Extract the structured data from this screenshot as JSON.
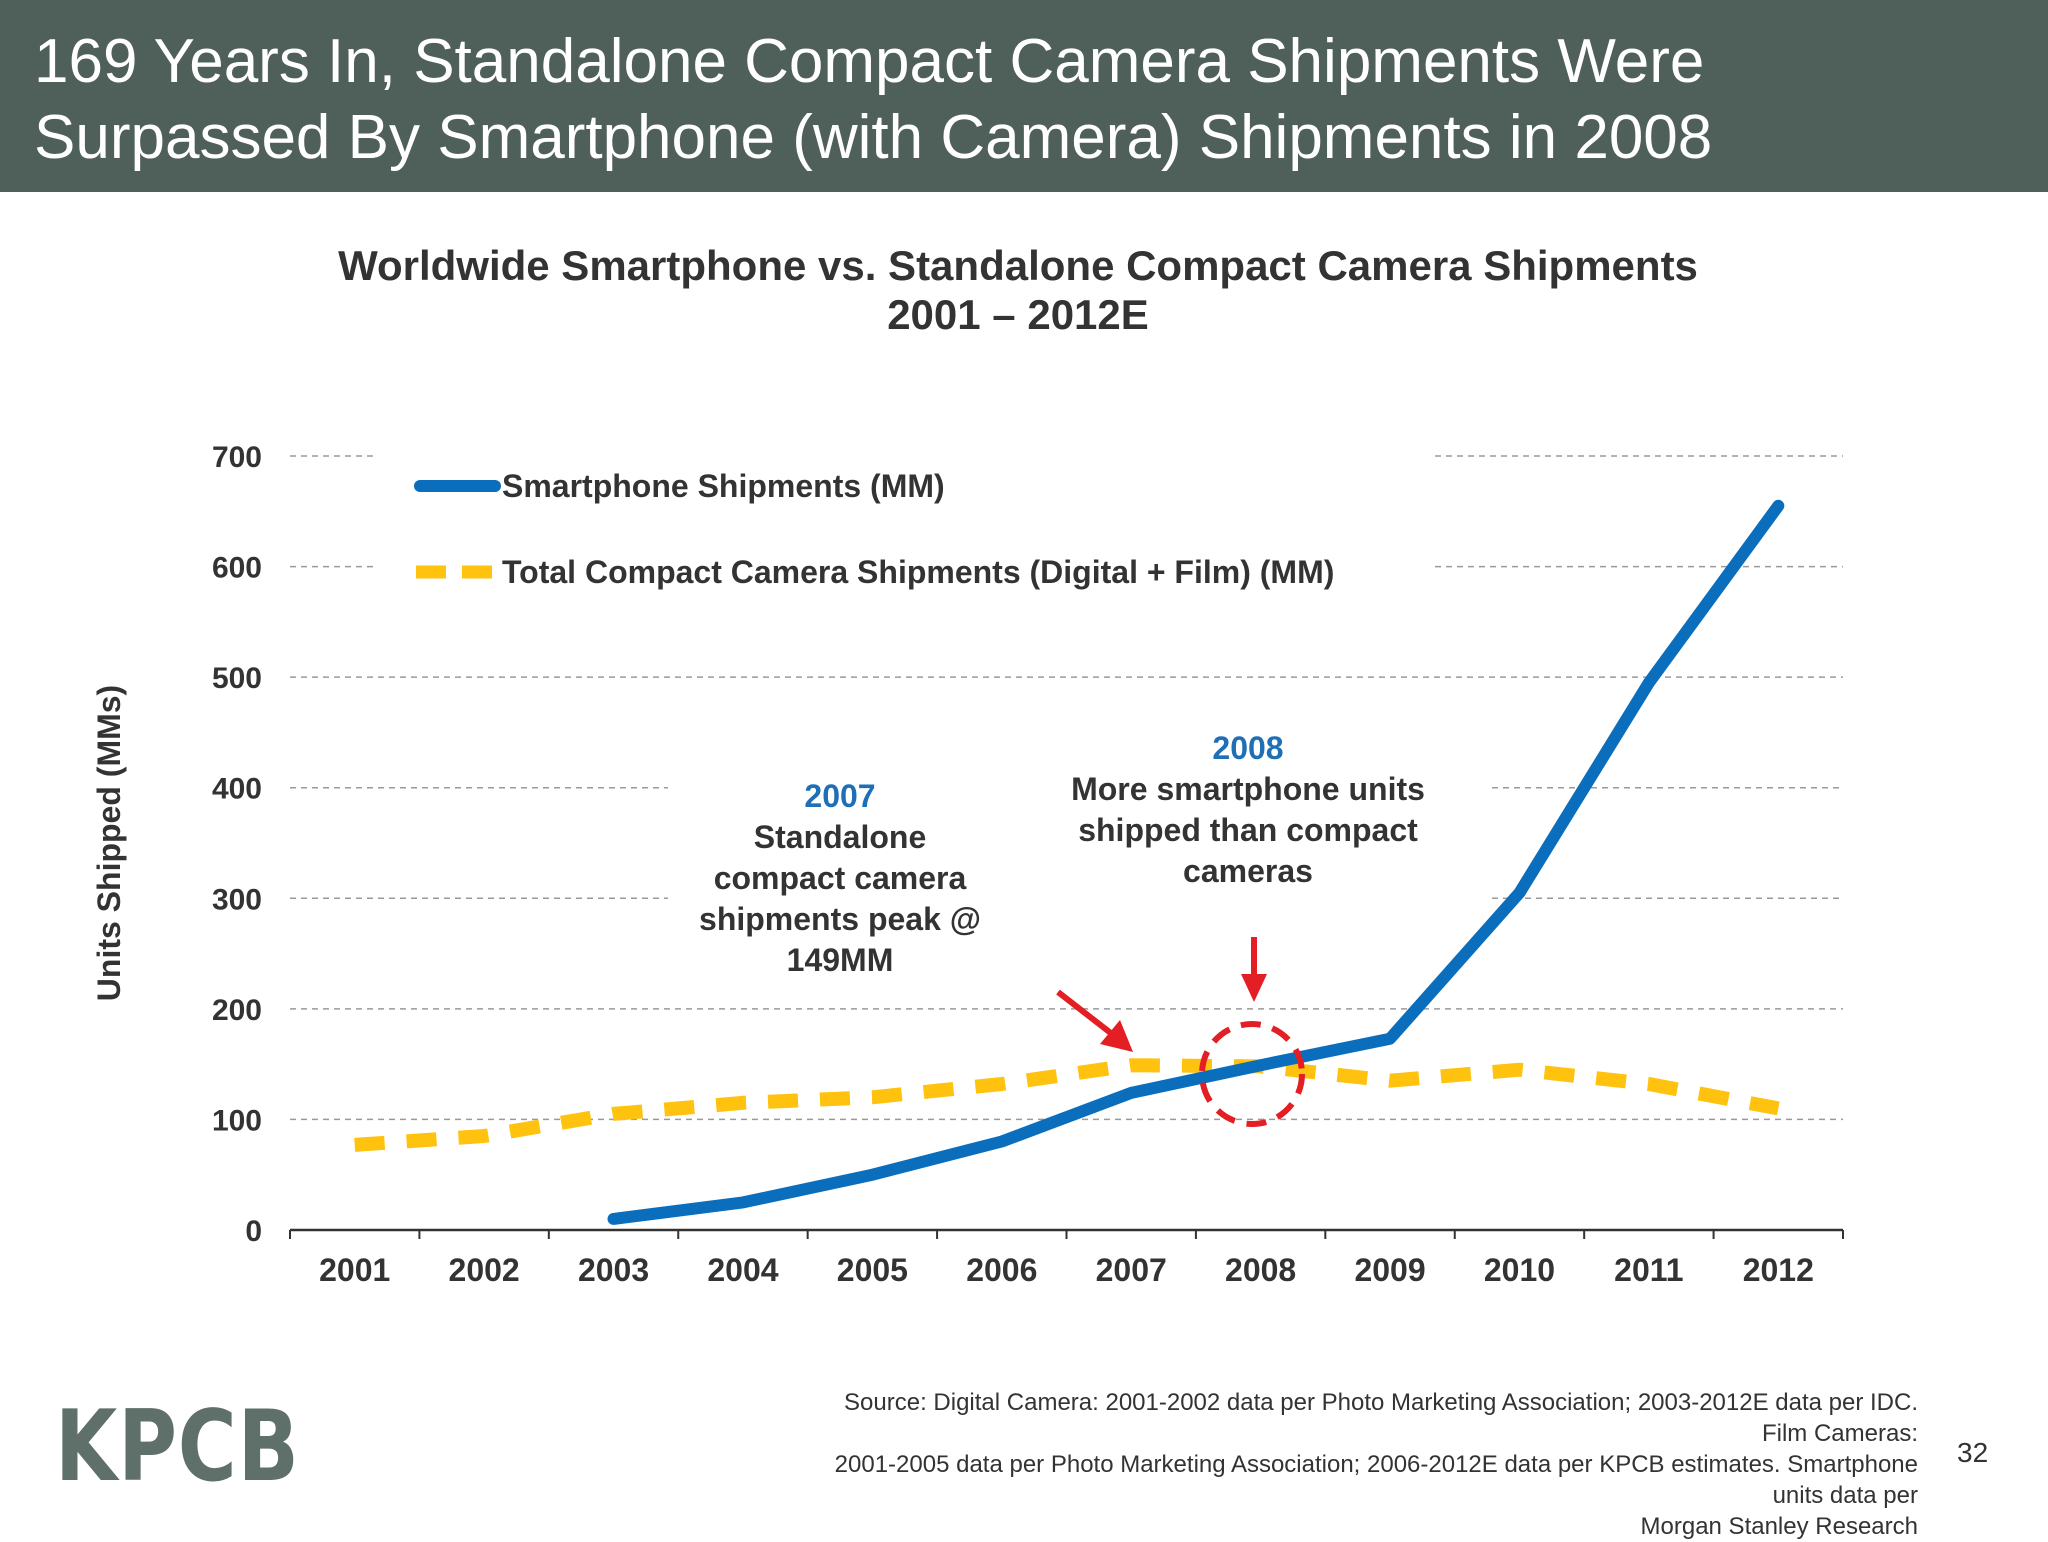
{
  "header": {
    "line1": "169 Years In, Standalone Compact Camera Shipments Were",
    "line2": "Surpassed By Smartphone (with Camera) Shipments in 2008"
  },
  "chart_data": {
    "type": "line",
    "title": "Worldwide Smartphone vs. Standalone Compact Camera Shipments",
    "subtitle": "2001 – 2012E",
    "ylabel": "Units Shipped (MMs)",
    "xlabel": "",
    "ylim": [
      0,
      700
    ],
    "yticks": [
      0,
      100,
      200,
      300,
      400,
      500,
      600,
      700
    ],
    "grid": true,
    "legend_position": "top-left",
    "categories": [
      "2001",
      "2002",
      "2003",
      "2004",
      "2005",
      "2006",
      "2007",
      "2008",
      "2009",
      "2010",
      "2011",
      "2012"
    ],
    "series": [
      {
        "name": "Smartphone Shipments (MM)",
        "style": "solid",
        "color": "#0a6ebd",
        "values": [
          null,
          null,
          10,
          25,
          50,
          80,
          124,
          149,
          173,
          305,
          495,
          655
        ]
      },
      {
        "name": "Total Compact Camera Shipments (Digital + Film) (MM)",
        "style": "dashed",
        "color": "#ffc20e",
        "values": [
          77,
          85,
          105,
          115,
          120,
          132,
          149,
          148,
          135,
          145,
          132,
          110
        ]
      }
    ]
  },
  "annotations": {
    "peak": {
      "year": "2007",
      "lines": [
        "Standalone",
        "compact camera",
        "shipments peak @",
        "149MM"
      ]
    },
    "crossover": {
      "year": "2008",
      "lines": [
        "More smartphone units",
        "shipped than compact",
        "cameras"
      ]
    },
    "marker_color": "#e31e24"
  },
  "footer": {
    "source_lines": [
      "Source: Digital Camera: 2001-2002 data per Photo Marketing Association; 2003-2012E data per IDC. Film Cameras:",
      "2001-2005 data per Photo Marketing Association; 2006-2012E data per KPCB estimates.  Smartphone units data per",
      "Morgan Stanley Research"
    ],
    "logo": "KPCB",
    "page_number": "32"
  }
}
